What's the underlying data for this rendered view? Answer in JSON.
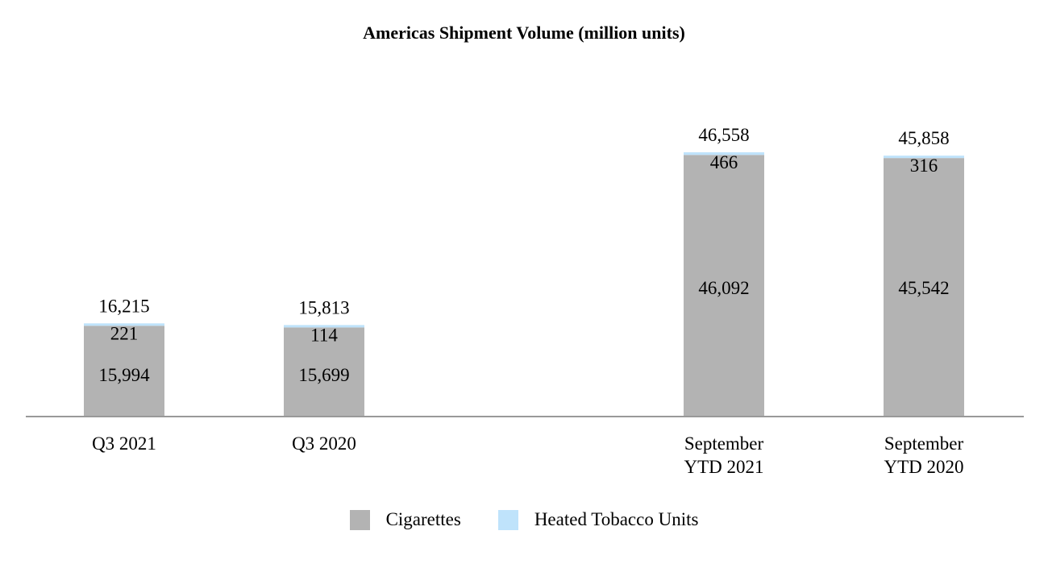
{
  "chart_data": {
    "type": "bar",
    "stacked": true,
    "title": "Americas Shipment Volume (million units)",
    "categories": [
      [
        "Q3 2021"
      ],
      [
        "Q3 2020"
      ],
      [
        "September",
        "YTD 2021"
      ],
      [
        "September",
        "YTD 2020"
      ]
    ],
    "series": [
      {
        "name": "Cigarettes",
        "values": [
          15994,
          15699,
          46092,
          45542
        ],
        "labels": [
          "15,994",
          "15,699",
          "46,092",
          "45,542"
        ],
        "color": "#b3b3b3"
      },
      {
        "name": "Heated Tobacco Units",
        "values": [
          221,
          114,
          466,
          316
        ],
        "labels": [
          "221",
          "114",
          "466",
          "316"
        ],
        "color": "#bfe3fb"
      }
    ],
    "totals": [
      "16,215",
      "15,813",
      "46,558",
      "45,858"
    ],
    "legend_position": "bottom",
    "grid": false,
    "axis_color": "#999999"
  }
}
